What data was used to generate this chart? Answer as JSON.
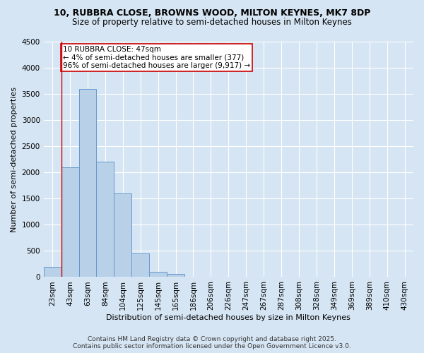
{
  "title_line1": "10, RUBBRA CLOSE, BROWNS WOOD, MILTON KEYNES, MK7 8DP",
  "title_line2": "Size of property relative to semi-detached houses in Milton Keynes",
  "xlabel": "Distribution of semi-detached houses by size in Milton Keynes",
  "ylabel": "Number of semi-detached properties",
  "categories": [
    "23sqm",
    "43sqm",
    "63sqm",
    "84sqm",
    "104sqm",
    "125sqm",
    "145sqm",
    "165sqm",
    "186sqm",
    "206sqm",
    "226sqm",
    "247sqm",
    "267sqm",
    "287sqm",
    "308sqm",
    "328sqm",
    "349sqm",
    "369sqm",
    "389sqm",
    "410sqm",
    "430sqm"
  ],
  "values": [
    200,
    2100,
    3600,
    2200,
    1600,
    450,
    100,
    60,
    0,
    0,
    0,
    0,
    0,
    0,
    0,
    0,
    0,
    0,
    0,
    0,
    0
  ],
  "bar_color": "#b8d0e8",
  "bar_edge_color": "#6699cc",
  "vline_x": 0.5,
  "vline_color": "#cc0000",
  "annotation_text": "10 RUBBRA CLOSE: 47sqm\n← 4% of semi-detached houses are smaller (377)\n96% of semi-detached houses are larger (9,917) →",
  "annotation_box_color": "#ffffff",
  "annotation_box_edge": "#cc0000",
  "ylim": [
    0,
    4500
  ],
  "yticks": [
    0,
    500,
    1000,
    1500,
    2000,
    2500,
    3000,
    3500,
    4000,
    4500
  ],
  "footer_line1": "Contains HM Land Registry data © Crown copyright and database right 2025.",
  "footer_line2": "Contains public sector information licensed under the Open Government Licence v3.0.",
  "bg_color": "#d6e5f3",
  "plot_bg_color": "#d6e5f3",
  "title_fontsize": 9,
  "subtitle_fontsize": 8.5,
  "tick_fontsize": 7.5,
  "axis_label_fontsize": 8,
  "annotation_fontsize": 7.5,
  "footer_fontsize": 6.5
}
